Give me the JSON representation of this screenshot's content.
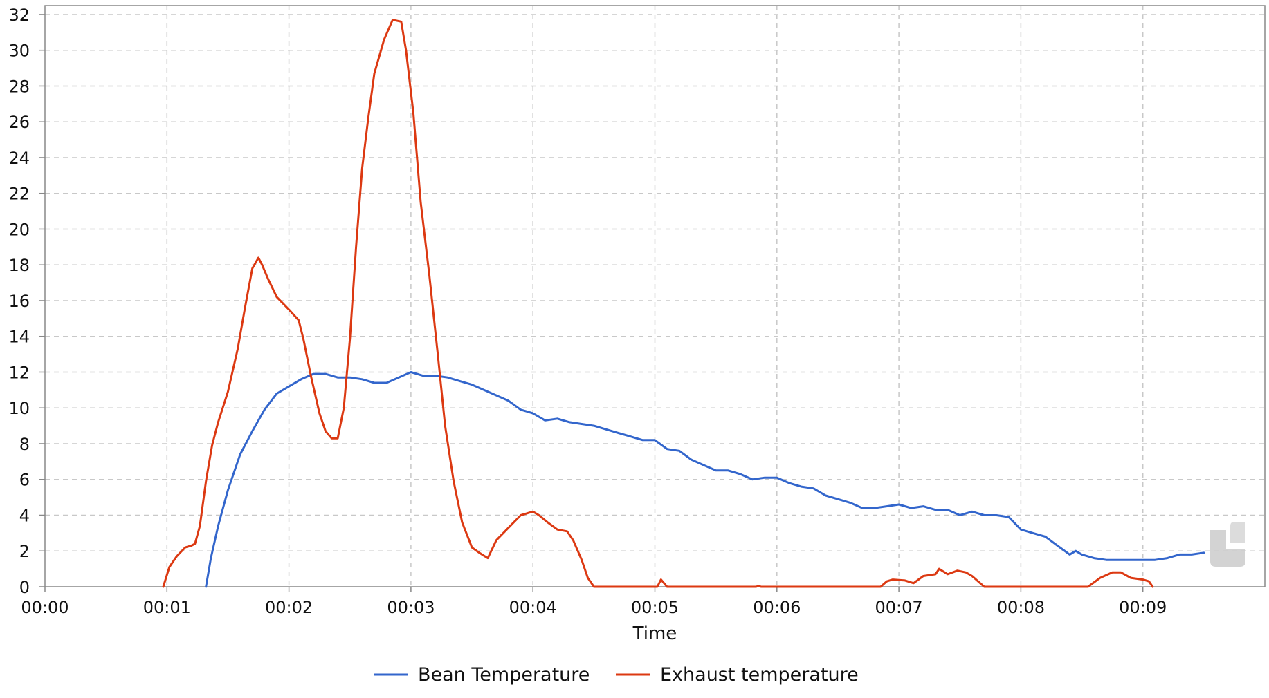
{
  "chart_data": {
    "type": "line",
    "title": "",
    "xlabel": "Time",
    "ylabel": "",
    "x_unit": "minutes",
    "xlim": [
      0,
      10
    ],
    "ylim": [
      0,
      32.5
    ],
    "x_ticks": [
      0,
      1,
      2,
      3,
      4,
      5,
      6,
      7,
      8,
      9
    ],
    "x_tick_labels": [
      "00:00",
      "00:01",
      "00:02",
      "00:03",
      "00:04",
      "00:05",
      "00:06",
      "00:07",
      "00:08",
      "00:09"
    ],
    "y_ticks": [
      0,
      2,
      4,
      6,
      8,
      10,
      12,
      14,
      16,
      18,
      20,
      22,
      24,
      26,
      28,
      30,
      32
    ],
    "y_tick_labels": [
      "0",
      "2",
      "4",
      "6",
      "8",
      "10",
      "12",
      "14",
      "16",
      "18",
      "20",
      "22",
      "24",
      "26",
      "28",
      "30",
      "32"
    ],
    "grid": true,
    "legend_position": "bottom-center",
    "series": [
      {
        "name": "Bean Temperature",
        "color": "#3366cc",
        "x": [
          1.32,
          1.36,
          1.42,
          1.5,
          1.6,
          1.7,
          1.8,
          1.9,
          2.0,
          2.1,
          2.2,
          2.3,
          2.4,
          2.5,
          2.6,
          2.7,
          2.8,
          2.9,
          3.0,
          3.1,
          3.2,
          3.3,
          3.4,
          3.5,
          3.6,
          3.7,
          3.8,
          3.9,
          4.0,
          4.1,
          4.2,
          4.3,
          4.4,
          4.5,
          4.6,
          4.7,
          4.8,
          4.9,
          5.0,
          5.1,
          5.2,
          5.3,
          5.4,
          5.5,
          5.6,
          5.7,
          5.8,
          5.9,
          6.0,
          6.1,
          6.2,
          6.3,
          6.4,
          6.5,
          6.6,
          6.7,
          6.8,
          6.9,
          7.0,
          7.1,
          7.2,
          7.3,
          7.4,
          7.5,
          7.6,
          7.7,
          7.8,
          7.9,
          8.0,
          8.1,
          8.2,
          8.3,
          8.4,
          8.45,
          8.5,
          8.6,
          8.7,
          8.8,
          8.9,
          9.0,
          9.1,
          9.2,
          9.3,
          9.4,
          9.5
        ],
        "y": [
          0,
          1.6,
          3.4,
          5.4,
          7.4,
          8.7,
          9.9,
          10.8,
          11.2,
          11.6,
          11.9,
          11.9,
          11.7,
          11.7,
          11.6,
          11.4,
          11.4,
          11.7,
          12.0,
          11.8,
          11.8,
          11.7,
          11.5,
          11.3,
          11.0,
          10.7,
          10.4,
          9.9,
          9.7,
          9.3,
          9.4,
          9.2,
          9.1,
          9.0,
          8.8,
          8.6,
          8.4,
          8.2,
          8.2,
          7.7,
          7.6,
          7.1,
          6.8,
          6.5,
          6.5,
          6.3,
          6.0,
          6.1,
          6.1,
          5.8,
          5.6,
          5.5,
          5.1,
          4.9,
          4.7,
          4.4,
          4.4,
          4.5,
          4.6,
          4.4,
          4.5,
          4.3,
          4.3,
          4.0,
          4.2,
          4.0,
          4.0,
          3.9,
          3.2,
          3.0,
          2.8,
          2.3,
          1.8,
          2.0,
          1.8,
          1.6,
          1.5,
          1.5,
          1.5,
          1.5,
          1.5,
          1.6,
          1.8,
          1.8,
          1.9
        ]
      },
      {
        "name": "Exhaust temperature",
        "color": "#dc3912",
        "x": [
          0.97,
          1.02,
          1.08,
          1.15,
          1.2,
          1.23,
          1.27,
          1.32,
          1.37,
          1.42,
          1.5,
          1.58,
          1.64,
          1.7,
          1.75,
          1.78,
          1.83,
          1.9,
          2.0,
          2.08,
          2.12,
          2.18,
          2.25,
          2.3,
          2.35,
          2.4,
          2.45,
          2.5,
          2.55,
          2.6,
          2.65,
          2.7,
          2.78,
          2.85,
          2.92,
          2.96,
          3.02,
          3.08,
          3.15,
          3.22,
          3.28,
          3.35,
          3.42,
          3.5,
          3.56,
          3.63,
          3.7,
          3.8,
          3.9,
          4.0,
          4.05,
          4.12,
          4.2,
          4.28,
          4.33,
          4.4,
          4.45,
          4.5,
          5.02,
          5.05,
          5.1,
          5.83,
          5.85,
          5.87,
          6.85,
          6.9,
          6.95,
          7.05,
          7.12,
          7.2,
          7.3,
          7.33,
          7.4,
          7.48,
          7.55,
          7.6,
          7.65,
          7.7,
          8.55,
          8.65,
          8.75,
          8.82,
          8.9,
          9.0,
          9.05,
          9.08
        ],
        "y": [
          0,
          1.1,
          1.7,
          2.2,
          2.3,
          2.4,
          3.4,
          5.9,
          7.9,
          9.2,
          10.9,
          13.3,
          15.6,
          17.8,
          18.4,
          18.0,
          17.2,
          16.2,
          15.5,
          14.9,
          13.8,
          11.8,
          9.7,
          8.7,
          8.3,
          8.3,
          10.0,
          13.9,
          19.0,
          23.4,
          26.2,
          28.7,
          30.6,
          31.7,
          31.6,
          30.0,
          26.5,
          21.5,
          17.5,
          13.0,
          9.0,
          5.9,
          3.6,
          2.2,
          1.9,
          1.6,
          2.6,
          3.3,
          4.0,
          4.2,
          4.0,
          3.6,
          3.2,
          3.1,
          2.6,
          1.5,
          0.5,
          0,
          0,
          0.4,
          0,
          0,
          0.05,
          0,
          0,
          0.3,
          0.4,
          0.35,
          0.2,
          0.6,
          0.7,
          1.0,
          0.7,
          0.9,
          0.8,
          0.6,
          0.3,
          0,
          0,
          0.5,
          0.8,
          0.8,
          0.5,
          0.4,
          0.3,
          0
        ]
      }
    ]
  }
}
